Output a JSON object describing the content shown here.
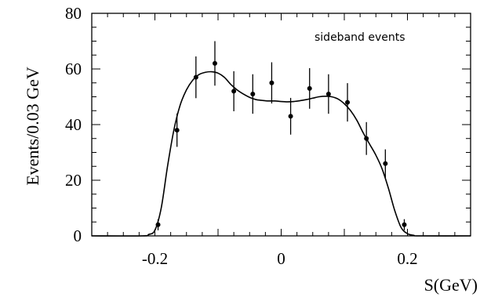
{
  "chart_data": {
    "type": "scatter",
    "xlabel": "S(GeV)",
    "ylabel": "Events/0.03 GeV",
    "annotation": "sideband events",
    "xlim": [
      -0.3,
      0.3
    ],
    "ylim": [
      0,
      80
    ],
    "x_ticks": [
      -0.2,
      0,
      0.2
    ],
    "x_tick_labels": [
      "-0.2",
      "0",
      "0.2"
    ],
    "y_ticks": [
      0,
      20,
      40,
      60,
      80
    ],
    "y_tick_labels": [
      "0",
      "20",
      "40",
      "60",
      "80"
    ],
    "grid": false,
    "points": [
      {
        "x": -0.195,
        "y": 4,
        "err": 2
      },
      {
        "x": -0.165,
        "y": 38,
        "err": 6
      },
      {
        "x": -0.135,
        "y": 57,
        "err": 7.5
      },
      {
        "x": -0.105,
        "y": 62,
        "err": 8
      },
      {
        "x": -0.075,
        "y": 52,
        "err": 7.2
      },
      {
        "x": -0.045,
        "y": 51,
        "err": 7.1
      },
      {
        "x": -0.015,
        "y": 55,
        "err": 7.4
      },
      {
        "x": 0.015,
        "y": 43,
        "err": 6.6
      },
      {
        "x": 0.045,
        "y": 53,
        "err": 7.3
      },
      {
        "x": 0.075,
        "y": 51,
        "err": 7.1
      },
      {
        "x": 0.105,
        "y": 48,
        "err": 6.9
      },
      {
        "x": 0.135,
        "y": 35,
        "err": 5.9
      },
      {
        "x": 0.165,
        "y": 26,
        "err": 5.1
      },
      {
        "x": 0.195,
        "y": 4,
        "err": 2
      }
    ],
    "fit_curve": {
      "x": [
        -0.3,
        -0.22,
        -0.21,
        -0.2,
        -0.19,
        -0.18,
        -0.17,
        -0.16,
        -0.15,
        -0.14,
        -0.13,
        -0.12,
        -0.11,
        -0.1,
        -0.09,
        -0.08,
        -0.07,
        -0.06,
        -0.05,
        -0.04,
        -0.03,
        -0.02,
        -0.01,
        0.0,
        0.01,
        0.02,
        0.03,
        0.04,
        0.05,
        0.06,
        0.07,
        0.08,
        0.09,
        0.1,
        0.11,
        0.12,
        0.13,
        0.14,
        0.15,
        0.16,
        0.17,
        0.18,
        0.19,
        0.2,
        0.21,
        0.22,
        0.3
      ],
      "y": [
        0,
        0,
        0.5,
        2,
        10,
        25,
        38,
        47,
        52.5,
        56,
        58,
        58.8,
        59,
        58.5,
        57,
        54.5,
        52.5,
        51,
        49.8,
        49,
        48.7,
        48.5,
        48.5,
        48.3,
        48.2,
        48.3,
        48.6,
        49,
        49.5,
        50,
        50.2,
        50,
        49.2,
        47.5,
        45,
        41.5,
        37,
        33,
        29,
        24,
        17,
        9,
        3,
        0.8,
        0.2,
        0,
        0
      ]
    }
  }
}
